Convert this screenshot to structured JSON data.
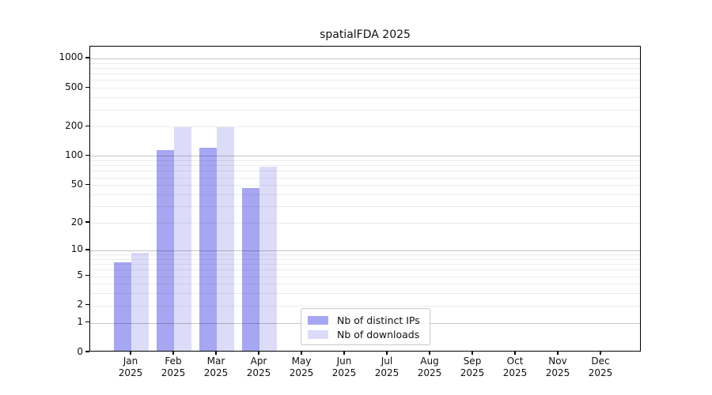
{
  "chart_data": {
    "type": "bar",
    "title": "spatialFDA 2025",
    "categories": [
      "Jan 2025",
      "Feb 2025",
      "Mar 2025",
      "Apr 2025",
      "May 2025",
      "Jun 2025",
      "Jul 2025",
      "Aug 2025",
      "Sep 2025",
      "Oct 2025",
      "Nov 2025",
      "Dec 2025"
    ],
    "series": [
      {
        "name": "Nb of distinct IPs",
        "color": "#a6a6f2",
        "values": [
          7,
          110,
          118,
          45,
          0,
          0,
          0,
          0,
          0,
          0,
          0,
          0
        ]
      },
      {
        "name": "Nb of downloads",
        "color": "#dcdcf9",
        "values": [
          9,
          190,
          190,
          75,
          0,
          0,
          0,
          0,
          0,
          0,
          0,
          0
        ]
      }
    ],
    "xlabel": "",
    "ylabel": "",
    "yscale": "log10(1+x)",
    "ylim": [
      0,
      1320
    ],
    "yticks": [
      0,
      1,
      2,
      5,
      10,
      20,
      50,
      100,
      200,
      500,
      1000
    ],
    "grid": "horizontal",
    "major_grid_values": [
      1,
      10,
      100,
      1000
    ],
    "legend_position": "lower-center-inside",
    "colors": {
      "axis": "#000000",
      "major_gridline": "#c6c6c6",
      "minor_gridline": "#ececec",
      "background": "#ffffff"
    }
  }
}
